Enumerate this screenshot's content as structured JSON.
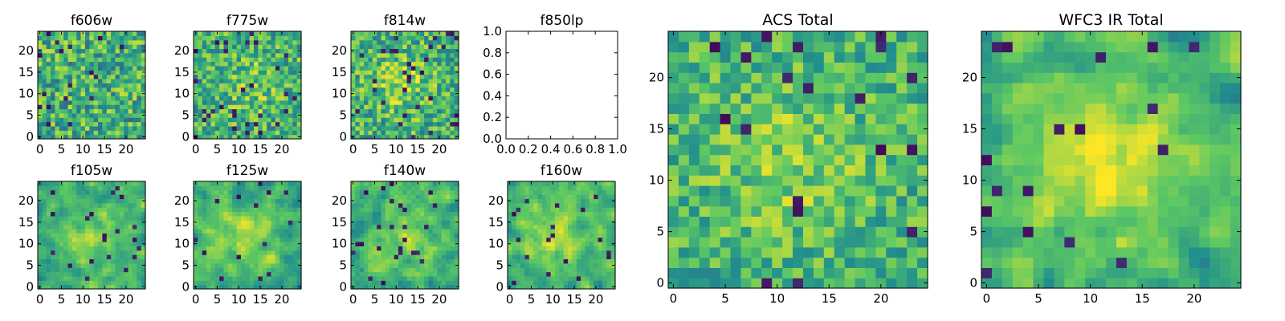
{
  "figure": {
    "colormap_name": "viridis",
    "colormap_stops": [
      "#440154",
      "#3b528b",
      "#21908d",
      "#5dc863",
      "#fde725"
    ],
    "grid_size": 25,
    "background": "#ffffff"
  },
  "chart_data": [
    {
      "type": "heatmap",
      "id": "f606w",
      "title": "f606w",
      "xticks": [
        0,
        5,
        10,
        15,
        20
      ],
      "yticks": [
        0,
        5,
        10,
        15,
        20
      ],
      "xlim": [
        -0.5,
        24.5
      ],
      "ylim": [
        -0.5,
        24.5
      ],
      "value_range": [
        0,
        1
      ],
      "smoothness": 0,
      "contrast": 0.55,
      "blob": [
        12,
        12,
        5,
        0.0
      ],
      "dark_fraction": 0.04,
      "seed": 11
    },
    {
      "type": "heatmap",
      "id": "f775w",
      "title": "f775w",
      "xticks": [
        0,
        5,
        10,
        15,
        20
      ],
      "yticks": [
        0,
        5,
        10,
        15,
        20
      ],
      "xlim": [
        -0.5,
        24.5
      ],
      "ylim": [
        -0.5,
        24.5
      ],
      "value_range": [
        0,
        1
      ],
      "smoothness": 0,
      "contrast": 0.5,
      "blob": [
        13,
        12,
        5,
        0.12
      ],
      "dark_fraction": 0.04,
      "seed": 23
    },
    {
      "type": "heatmap",
      "id": "f814w",
      "title": "f814w",
      "xticks": [
        0,
        5,
        10,
        15,
        20
      ],
      "yticks": [
        0,
        5,
        10,
        15,
        20
      ],
      "xlim": [
        -0.5,
        24.5
      ],
      "ylim": [
        -0.5,
        24.5
      ],
      "value_range": [
        0,
        1
      ],
      "smoothness": 0,
      "contrast": 0.5,
      "blob": [
        11,
        13,
        5,
        0.18
      ],
      "dark_fraction": 0.05,
      "seed": 37
    },
    {
      "type": "empty",
      "id": "f850lp",
      "title": "f850lp",
      "xticks": [
        "0.0",
        "0.2",
        "0.4",
        "0.6",
        "0.8",
        "1.0"
      ],
      "yticks": [
        "0.0",
        "0.2",
        "0.4",
        "0.6",
        "0.8",
        "1.0"
      ],
      "xlim": [
        0,
        1
      ],
      "ylim": [
        0,
        1
      ]
    },
    {
      "type": "heatmap",
      "id": "f105w",
      "title": "f105w",
      "xticks": [
        0,
        5,
        10,
        15,
        20
      ],
      "yticks": [
        0,
        5,
        10,
        15,
        20
      ],
      "xlim": [
        -0.5,
        24.5
      ],
      "ylim": [
        -0.5,
        24.5
      ],
      "value_range": [
        0,
        1
      ],
      "smoothness": 1,
      "contrast": 0.45,
      "blob": [
        12,
        11,
        5,
        0.22
      ],
      "dark_fraction": 0.03,
      "seed": 41
    },
    {
      "type": "heatmap",
      "id": "f125w",
      "title": "f125w",
      "xticks": [
        0,
        5,
        10,
        15,
        20
      ],
      "yticks": [
        0,
        5,
        10,
        15,
        20
      ],
      "xlim": [
        -0.5,
        24.5
      ],
      "ylim": [
        -0.5,
        24.5
      ],
      "value_range": [
        0,
        1
      ],
      "smoothness": 1,
      "contrast": 0.45,
      "blob": [
        12,
        12,
        5,
        0.2
      ],
      "dark_fraction": 0.03,
      "seed": 53
    },
    {
      "type": "heatmap",
      "id": "f140w",
      "title": "f140w",
      "xticks": [
        0,
        5,
        10,
        15,
        20
      ],
      "yticks": [
        0,
        5,
        10,
        15,
        20
      ],
      "xlim": [
        -0.5,
        24.5
      ],
      "ylim": [
        -0.5,
        24.5
      ],
      "value_range": [
        0,
        1
      ],
      "smoothness": 1,
      "contrast": 0.45,
      "blob": [
        12,
        12,
        5,
        0.15
      ],
      "dark_fraction": 0.03,
      "seed": 67
    },
    {
      "type": "heatmap",
      "id": "f160w",
      "title": "f160w",
      "xticks": [
        0,
        5,
        10,
        15,
        20
      ],
      "yticks": [
        0,
        5,
        10,
        15,
        20
      ],
      "xlim": [
        -0.5,
        24.5
      ],
      "ylim": [
        -0.5,
        24.5
      ],
      "value_range": [
        0,
        1
      ],
      "smoothness": 1,
      "contrast": 0.45,
      "blob": [
        10,
        12,
        5,
        0.25
      ],
      "dark_fraction": 0.04,
      "seed": 79
    },
    {
      "type": "heatmap",
      "id": "acs_total",
      "title": "ACS Total",
      "xticks": [
        0,
        5,
        10,
        15,
        20
      ],
      "yticks": [
        0,
        5,
        10,
        15,
        20
      ],
      "xlim": [
        -0.5,
        24.5
      ],
      "ylim": [
        -0.5,
        24.5
      ],
      "value_range": [
        0,
        1
      ],
      "smoothness": 0,
      "contrast": 0.4,
      "blob": [
        11,
        12,
        6,
        0.15
      ],
      "dark_fraction": 0.035,
      "seed": 97
    },
    {
      "type": "heatmap",
      "id": "wfc3_ir_total",
      "title": "WFC3 IR Total",
      "xticks": [
        0,
        5,
        10,
        15,
        20
      ],
      "yticks": [
        0,
        5,
        10,
        15,
        20
      ],
      "xlim": [
        -0.5,
        24.5
      ],
      "ylim": [
        -0.5,
        24.5
      ],
      "value_range": [
        0,
        1
      ],
      "smoothness": 1,
      "contrast": 0.45,
      "blob": [
        11,
        12,
        6,
        0.3
      ],
      "dark_fraction": 0.035,
      "seed": 113
    }
  ]
}
